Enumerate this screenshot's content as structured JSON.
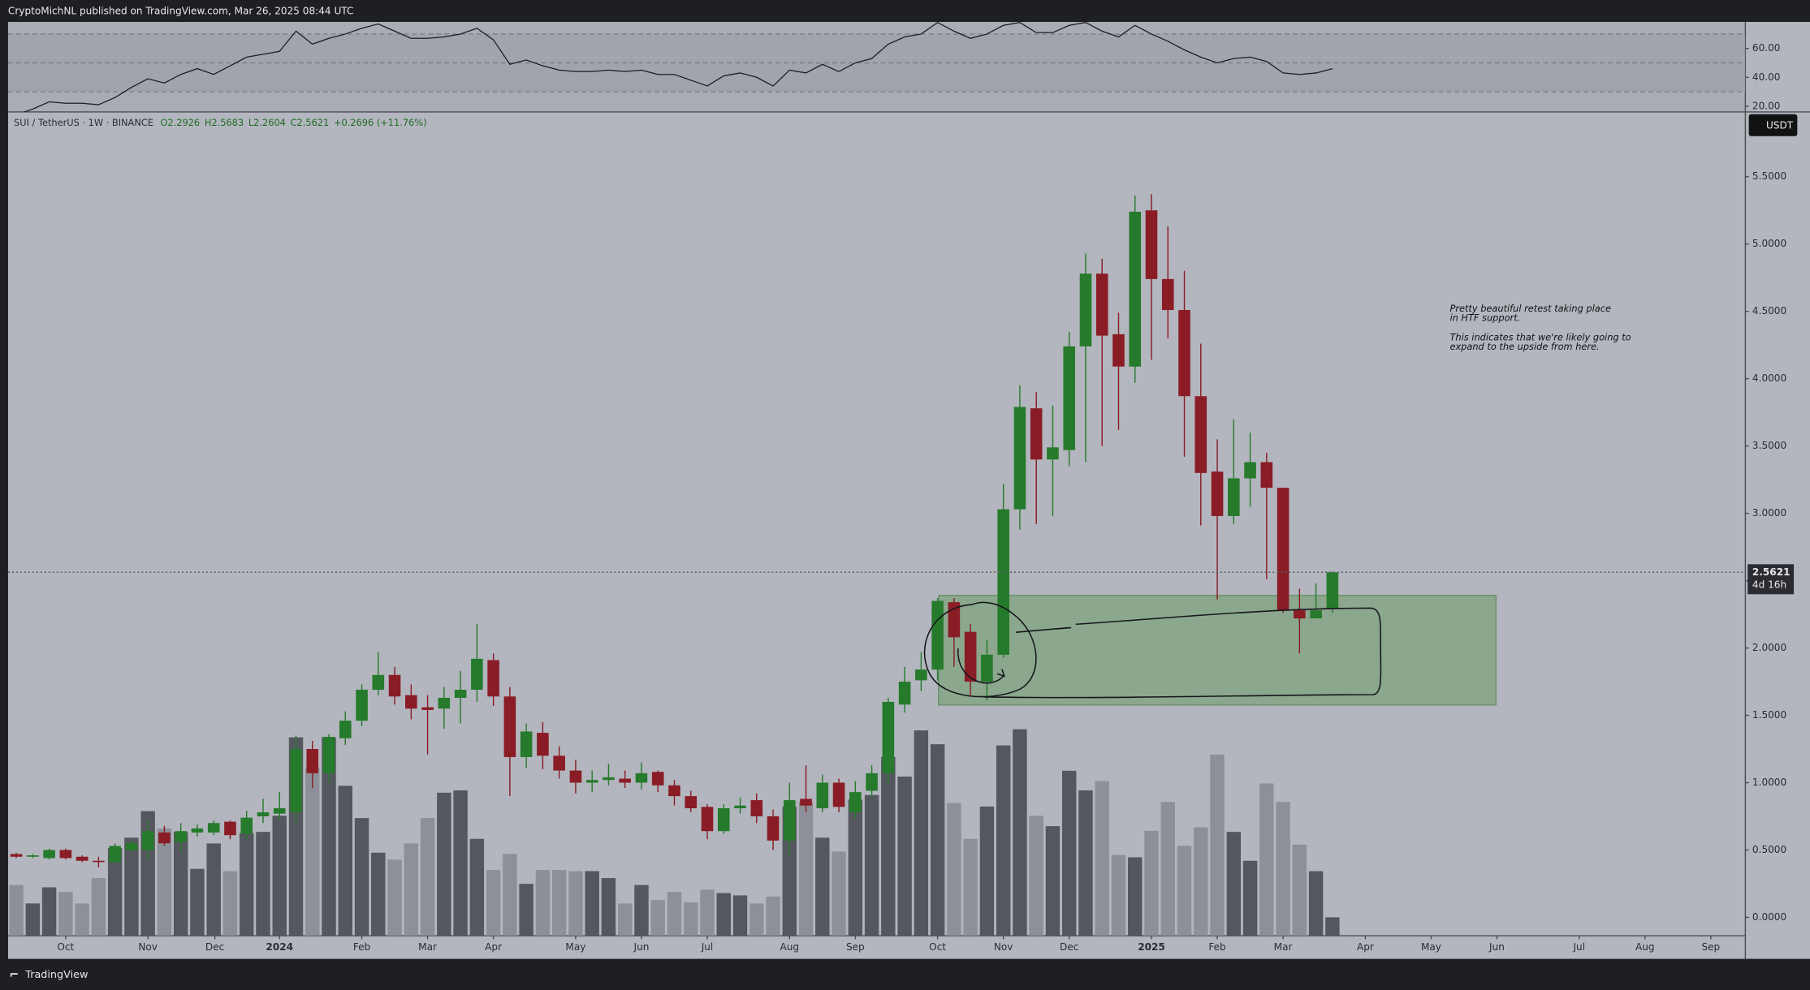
{
  "header": {
    "publisher": "CryptoMichNL published on TradingView.com, Mar 26, 2025 08:44 UTC"
  },
  "footer": {
    "brand": "TradingView"
  },
  "chart_data": {
    "type": "candlestick",
    "legend": {
      "symbol": "SUI / TetherUS · 1W · BINANCE",
      "open": "O2.2926",
      "high": "H2.5683",
      "low": "L2.2604",
      "close": "C2.5621",
      "change": "+0.2696 (+11.76%)"
    },
    "currency": "USDT",
    "up_color": "#267a2c",
    "down_color": "#8a1c26",
    "open": [
      0.47,
      0.45,
      0.44,
      0.5,
      0.45,
      0.42,
      0.41,
      0.5,
      0.5,
      0.63,
      0.56,
      0.63,
      0.63,
      0.71,
      0.62,
      0.75,
      0.77,
      0.78,
      1.25,
      1.07,
      1.33,
      1.46,
      1.69,
      1.8,
      1.65,
      1.56,
      1.55,
      1.63,
      1.69,
      1.91,
      1.64,
      1.19,
      1.37,
      1.2,
      1.09,
      1.0,
      1.02,
      1.03,
      1.0,
      1.08,
      0.98,
      0.9,
      0.82,
      0.64,
      0.81,
      0.87,
      0.75,
      0.57,
      0.88,
      0.81,
      1.0,
      0.78,
      0.94,
      1.07,
      1.58,
      1.76,
      1.84,
      2.34,
      2.12,
      1.75,
      1.95,
      3.03,
      3.78,
      3.4,
      3.47,
      4.24,
      4.78,
      4.33,
      4.09,
      5.25,
      4.74,
      4.51,
      3.87,
      3.31,
      2.98,
      3.26,
      3.38,
      3.19,
      2.28,
      2.22,
      2.2926
    ],
    "high": [
      0.48,
      0.47,
      0.51,
      0.51,
      0.46,
      0.45,
      0.55,
      0.57,
      0.72,
      0.68,
      0.7,
      0.69,
      0.72,
      0.72,
      0.79,
      0.88,
      0.93,
      1.35,
      1.31,
      1.36,
      1.53,
      1.73,
      1.97,
      1.86,
      1.73,
      1.65,
      1.71,
      1.83,
      2.18,
      1.96,
      1.71,
      1.44,
      1.45,
      1.27,
      1.17,
      1.09,
      1.14,
      1.09,
      1.15,
      1.09,
      1.02,
      0.94,
      0.84,
      0.84,
      0.89,
      0.92,
      0.8,
      1.0,
      1.13,
      1.06,
      1.03,
      1.01,
      1.13,
      1.63,
      1.86,
      1.97,
      2.37,
      2.37,
      2.18,
      2.06,
      3.22,
      3.95,
      3.9,
      3.8,
      4.35,
      4.93,
      4.89,
      4.49,
      5.36,
      5.37,
      5.13,
      4.8,
      4.26,
      3.55,
      3.7,
      3.6,
      3.45,
      3.19,
      2.44,
      2.48,
      2.5683
    ],
    "low": [
      0.44,
      0.44,
      0.43,
      0.43,
      0.41,
      0.37,
      0.4,
      0.48,
      0.42,
      0.53,
      0.48,
      0.6,
      0.61,
      0.58,
      0.58,
      0.7,
      0.72,
      0.7,
      0.96,
      1.0,
      1.28,
      1.42,
      1.65,
      1.58,
      1.47,
      1.21,
      1.4,
      1.44,
      1.6,
      1.57,
      0.9,
      1.11,
      1.1,
      1.03,
      0.92,
      0.93,
      0.98,
      0.96,
      0.95,
      0.93,
      0.83,
      0.78,
      0.58,
      0.62,
      0.77,
      0.7,
      0.5,
      0.45,
      0.78,
      0.78,
      0.78,
      0.74,
      0.89,
      0.98,
      1.52,
      1.68,
      1.76,
      1.86,
      1.65,
      1.61,
      1.93,
      2.88,
      2.92,
      2.98,
      3.35,
      3.38,
      3.5,
      3.62,
      3.97,
      4.14,
      4.3,
      3.42,
      2.91,
      2.36,
      2.92,
      3.05,
      2.51,
      2.26,
      1.96,
      2.22,
      2.2604
    ],
    "close": [
      0.45,
      0.46,
      0.5,
      0.44,
      0.42,
      0.41,
      0.53,
      0.55,
      0.64,
      0.55,
      0.64,
      0.66,
      0.7,
      0.61,
      0.74,
      0.78,
      0.81,
      1.25,
      1.07,
      1.34,
      1.46,
      1.69,
      1.8,
      1.64,
      1.55,
      1.54,
      1.63,
      1.69,
      1.92,
      1.64,
      1.19,
      1.38,
      1.2,
      1.09,
      1.0,
      1.02,
      1.04,
      1.0,
      1.07,
      0.98,
      0.9,
      0.81,
      0.64,
      0.81,
      0.83,
      0.75,
      0.57,
      0.87,
      0.83,
      1.0,
      0.82,
      0.93,
      1.07,
      1.6,
      1.75,
      1.84,
      2.35,
      2.08,
      1.75,
      1.95,
      3.03,
      3.79,
      3.4,
      3.49,
      4.24,
      4.78,
      4.32,
      4.09,
      5.24,
      4.74,
      4.51,
      3.87,
      3.3,
      2.98,
      3.26,
      3.38,
      3.19,
      2.28,
      2.22,
      2.28,
      2.5621
    ],
    "volume": {
      "values": [
        44,
        28,
        42,
        38,
        28,
        50,
        76,
        85,
        108,
        93,
        90,
        58,
        80,
        56,
        89,
        90,
        104,
        172,
        146,
        172,
        130,
        102,
        72,
        66,
        80,
        102,
        124,
        126,
        84,
        57,
        71,
        45,
        57,
        57,
        56,
        56,
        50,
        28,
        44,
        31,
        38,
        29,
        40,
        37,
        35,
        28,
        34,
        112,
        116,
        85,
        73,
        118,
        122,
        155,
        138,
        178,
        166,
        115,
        84,
        112,
        165,
        179,
        104,
        95,
        143,
        126,
        134,
        70,
        68,
        91,
        116,
        78,
        94,
        157,
        90,
        65,
        132,
        116,
        79,
        56,
        16
      ],
      "ylim": [
        0,
        714
      ],
      "up_color": "#55575e",
      "down_color": "#8d9098"
    },
    "rsi": {
      "values": [
        14,
        18,
        23,
        22,
        22,
        21,
        26,
        33,
        39,
        36,
        42,
        46,
        42,
        48,
        54,
        56,
        58,
        72,
        63,
        67,
        70,
        74,
        77,
        72,
        67,
        67,
        68,
        70,
        74,
        66,
        49,
        52,
        48,
        45,
        44,
        44,
        45,
        44,
        45,
        42,
        42,
        38,
        34,
        41,
        43,
        40,
        34,
        45,
        43,
        49,
        44,
        50,
        53,
        63,
        68,
        70,
        78,
        72,
        67,
        70,
        76,
        78,
        71,
        71,
        76,
        78,
        72,
        68,
        76,
        70,
        65,
        59,
        54,
        50,
        53,
        54,
        51,
        43,
        42,
        43,
        46
      ],
      "ylim": [
        16,
        78.4
      ],
      "yticks": [
        {
          "value": 60,
          "label": "60.00"
        },
        {
          "value": 40,
          "label": "40.00"
        },
        {
          "value": 20,
          "label": "20.00"
        }
      ],
      "levels": [
        30,
        50,
        70
      ],
      "color": "#1c1d22"
    },
    "xlim": [
      -0.5,
      105.1
    ],
    "xticks": [
      {
        "value": 3,
        "label": "Oct"
      },
      {
        "value": 8,
        "label": "Nov"
      },
      {
        "value": 12.07,
        "label": "Dec"
      },
      {
        "value": 16,
        "label": "2024"
      },
      {
        "value": 21,
        "label": "Feb"
      },
      {
        "value": 25,
        "label": "Mar"
      },
      {
        "value": 29,
        "label": "Apr"
      },
      {
        "value": 34,
        "label": "May"
      },
      {
        "value": 38,
        "label": "Jun"
      },
      {
        "value": 42,
        "label": "Jul"
      },
      {
        "value": 47,
        "label": "Aug"
      },
      {
        "value": 51,
        "label": "Sep"
      },
      {
        "value": 56,
        "label": "Oct"
      },
      {
        "value": 60,
        "label": "Nov"
      },
      {
        "value": 64,
        "label": "Dec"
      },
      {
        "value": 69,
        "label": "2025"
      },
      {
        "value": 73,
        "label": "Feb"
      },
      {
        "value": 77,
        "label": "Mar"
      },
      {
        "value": 82,
        "label": "Apr"
      },
      {
        "value": 86,
        "label": "May"
      },
      {
        "value": 90,
        "label": "Jun"
      },
      {
        "value": 95,
        "label": "Jul"
      },
      {
        "value": 99,
        "label": "Aug"
      },
      {
        "value": 103,
        "label": "Sep"
      }
    ],
    "ylim": [
      -0.137,
      5.981
    ],
    "yticks": [
      {
        "value": 5.5,
        "label": "5.5000"
      },
      {
        "value": 5,
        "label": "5.0000"
      },
      {
        "value": 4.5,
        "label": "4.5000"
      },
      {
        "value": 4,
        "label": "4.0000"
      },
      {
        "value": 3.5,
        "label": "3.5000"
      },
      {
        "value": 3,
        "label": "3.0000"
      },
      {
        "value": 2.5,
        "label": "2.5000"
      },
      {
        "value": 2,
        "label": "2.0000"
      },
      {
        "value": 1.5,
        "label": "1.5000"
      },
      {
        "value": 1,
        "label": "1.0000"
      },
      {
        "value": 0.5,
        "label": "0.5000"
      },
      {
        "value": 0,
        "label": "0.0000"
      }
    ],
    "last_price": {
      "value": 2.5621,
      "label": "2.5621"
    },
    "countdown": "4d 16h",
    "annotation": [
      "Pretty beautiful retest taking place",
      "in HTF support.",
      "This indicates that we're likely going to",
      "expand to the upside from here."
    ]
  }
}
